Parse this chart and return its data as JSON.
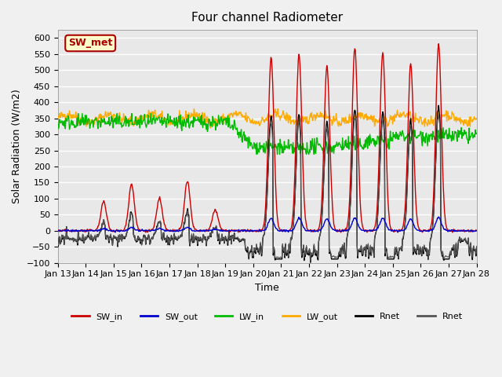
{
  "title": "Four channel Radiometer",
  "xlabel": "Time",
  "ylabel": "Solar Radiation (W/m2)",
  "ylim": [
    -100,
    625
  ],
  "yticks": [
    -100,
    -50,
    0,
    50,
    100,
    150,
    200,
    250,
    300,
    350,
    400,
    450,
    500,
    550,
    600
  ],
  "x_tick_labels": [
    "Jan 13",
    "Jan 14",
    "Jan 15",
    "Jan 16",
    "Jan 17",
    "Jan 18",
    "Jan 19",
    "Jan 20",
    "Jan 21",
    "Jan 22",
    "Jan 23",
    "Jan 24",
    "Jan 25",
    "Jan 26",
    "Jan 27",
    "Jan 28"
  ],
  "n_days": 15,
  "colors": {
    "SW_in": "#cc0000",
    "SW_out": "#0000cc",
    "LW_in": "#00bb00",
    "LW_out": "#ffaa00",
    "Rnet_black": "#000000",
    "Rnet_dark": "#555555"
  },
  "annotation_text": "SW_met",
  "annotation_color": "#aa0000",
  "annotation_bg": "#ffffcc",
  "background_color": "#e8e8e8",
  "grid_color": "#ffffff",
  "fig_bg": "#f0f0f0"
}
